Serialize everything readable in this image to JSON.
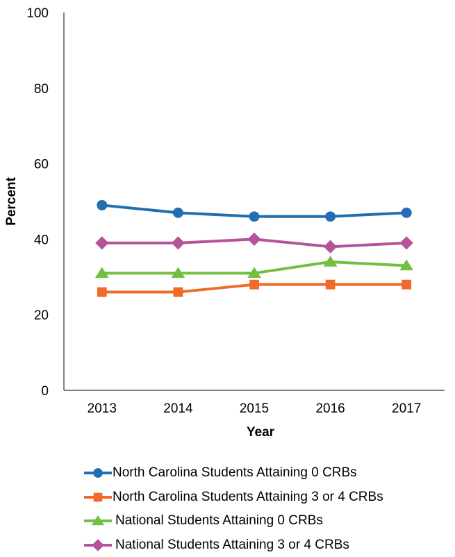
{
  "chart_data": {
    "type": "line",
    "title": "",
    "xlabel": "Year",
    "ylabel": "Percent",
    "categories": [
      "2013",
      "2014",
      "2015",
      "2016",
      "2017"
    ],
    "ylim": [
      0,
      100
    ],
    "yticks": [
      "0",
      "20",
      "40",
      "60",
      "80",
      "100"
    ],
    "grid": false,
    "legend_position": "bottom",
    "series": [
      {
        "name": "North Carolina Students Attaining 0 CRBs",
        "values": [
          49,
          47,
          46,
          46,
          47
        ],
        "color": "#1f6fb2",
        "marker": "circle"
      },
      {
        "name": "North Carolina Students Attaining 3 or 4 CRBs",
        "values": [
          26,
          26,
          28,
          28,
          28
        ],
        "color": "#f26a2a",
        "marker": "square"
      },
      {
        "name": "National Students Attaining 0 CRBs",
        "values": [
          31,
          31,
          31,
          34,
          33
        ],
        "color": "#72bf44",
        "marker": "triangle"
      },
      {
        "name": "National Students Attaining 3 or 4 CRBs",
        "values": [
          39,
          39,
          40,
          38,
          39
        ],
        "color": "#b5529a",
        "marker": "diamond"
      }
    ]
  }
}
